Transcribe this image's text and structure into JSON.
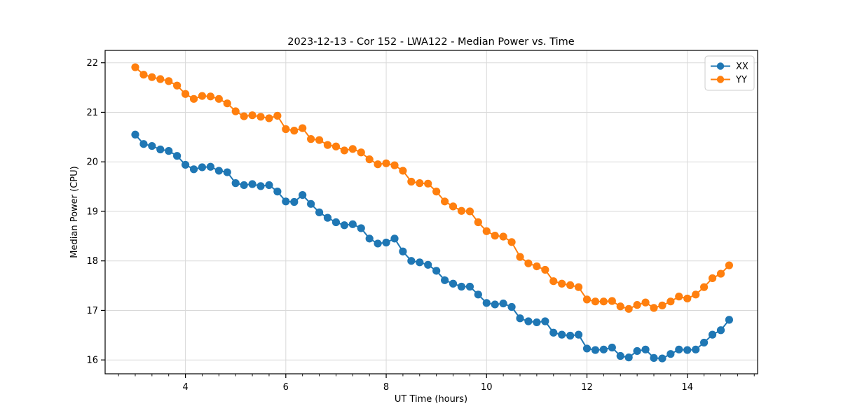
{
  "chart_data": {
    "type": "line",
    "title": "2023-12-13 - Cor 152 - LWA122 - Median Power vs. Time",
    "xlabel": "UT Time (hours)",
    "ylabel": "Median Power (CPU)",
    "xlim": [
      2.4,
      15.4
    ],
    "ylim": [
      15.72,
      22.25
    ],
    "x_ticks": [
      4,
      6,
      8,
      10,
      12,
      14
    ],
    "y_ticks": [
      16,
      17,
      18,
      19,
      20,
      21,
      22
    ],
    "x_minor_per_unit": 3,
    "grid": true,
    "grid_color": "#d9d9d9",
    "spine_color": "#000000",
    "background_color": "#ffffff",
    "legend_position": "upper right",
    "x": [
      3,
      3.167,
      3.333,
      3.5,
      3.667,
      3.833,
      4,
      4.167,
      4.333,
      4.5,
      4.667,
      4.833,
      5,
      5.167,
      5.333,
      5.5,
      5.667,
      5.833,
      6,
      6.167,
      6.333,
      6.5,
      6.667,
      6.833,
      7,
      7.167,
      7.333,
      7.5,
      7.667,
      7.833,
      8,
      8.167,
      8.333,
      8.5,
      8.667,
      8.833,
      9,
      9.167,
      9.333,
      9.5,
      9.667,
      9.833,
      10,
      10.167,
      10.333,
      10.5,
      10.667,
      10.833,
      11,
      11.167,
      11.333,
      11.5,
      11.667,
      11.833,
      12,
      12.167,
      12.333,
      12.5,
      12.667,
      12.833,
      13,
      13.167,
      13.333,
      13.5,
      13.667,
      13.833,
      14,
      14.167,
      14.333,
      14.5,
      14.667,
      14.833
    ],
    "series": [
      {
        "name": "XX",
        "color": "#1f77b4",
        "values": [
          20.55,
          20.36,
          20.32,
          20.25,
          20.22,
          20.12,
          19.94,
          19.85,
          19.89,
          19.9,
          19.82,
          19.79,
          19.57,
          19.53,
          19.55,
          19.51,
          19.53,
          19.4,
          19.2,
          19.19,
          19.33,
          19.15,
          18.98,
          18.87,
          18.78,
          18.72,
          18.74,
          18.66,
          18.45,
          18.35,
          18.37,
          18.45,
          18.19,
          18.0,
          17.97,
          17.92,
          17.8,
          17.61,
          17.54,
          17.48,
          17.48,
          17.32,
          17.15,
          17.12,
          17.14,
          17.07,
          16.84,
          16.78,
          16.76,
          16.78,
          16.55,
          16.51,
          16.49,
          16.51,
          16.23,
          16.2,
          16.21,
          16.25,
          16.08,
          16.05,
          16.18,
          16.21,
          16.04,
          16.03,
          16.12,
          16.21,
          16.2,
          16.21,
          16.35,
          16.51,
          16.6,
          16.81
        ]
      },
      {
        "name": "YY",
        "color": "#ff7f0e",
        "values": [
          21.91,
          21.76,
          21.71,
          21.67,
          21.63,
          21.54,
          21.37,
          21.27,
          21.33,
          21.32,
          21.27,
          21.18,
          21.02,
          20.92,
          20.94,
          20.91,
          20.88,
          20.93,
          20.66,
          20.63,
          20.68,
          20.46,
          20.44,
          20.34,
          20.31,
          20.23,
          20.26,
          20.19,
          20.05,
          19.95,
          19.97,
          19.93,
          19.82,
          19.6,
          19.57,
          19.56,
          19.4,
          19.2,
          19.1,
          19.01,
          19.0,
          18.78,
          18.6,
          18.51,
          18.49,
          18.38,
          18.08,
          17.95,
          17.89,
          17.82,
          17.59,
          17.54,
          17.51,
          17.47,
          17.22,
          17.18,
          17.18,
          17.19,
          17.08,
          17.03,
          17.11,
          17.16,
          17.05,
          17.1,
          17.18,
          17.28,
          17.24,
          17.32,
          17.47,
          17.65,
          17.74,
          17.91
        ]
      }
    ]
  }
}
